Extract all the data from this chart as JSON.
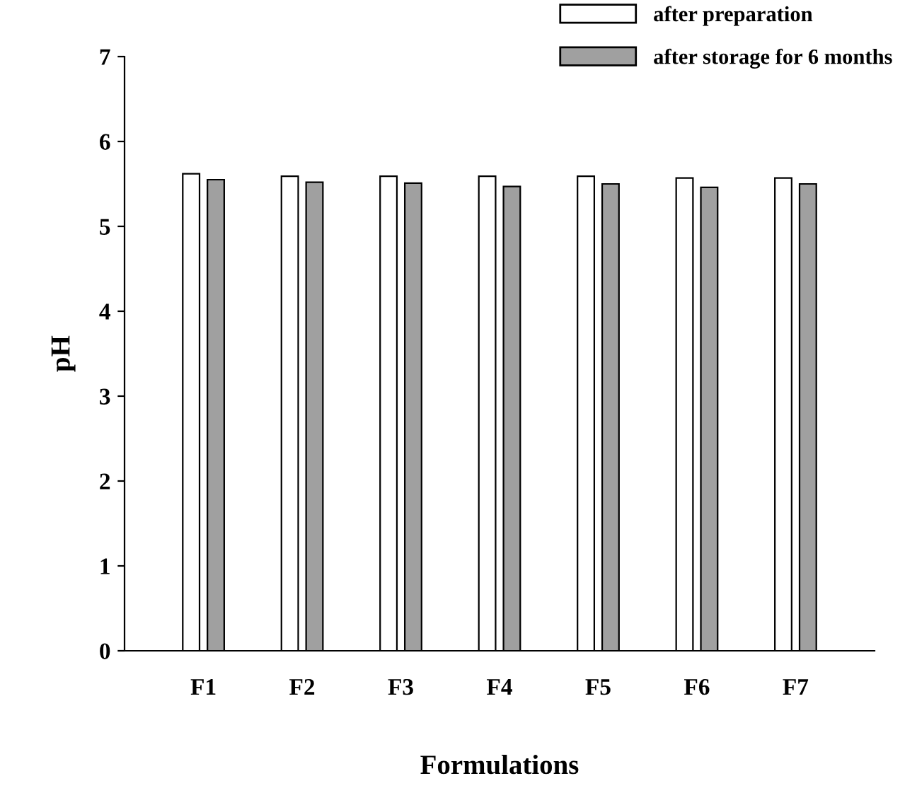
{
  "chart_data": {
    "type": "bar",
    "xlabel": "Formulations",
    "ylabel": "pH",
    "categories": [
      "F1",
      "F2",
      "F3",
      "F4",
      "F5",
      "F6",
      "F7"
    ],
    "series": [
      {
        "name": "after preparation",
        "color": "#ffffff",
        "values": [
          5.62,
          5.59,
          5.59,
          5.59,
          5.59,
          5.57,
          5.57
        ]
      },
      {
        "name": "after storage for 6 months",
        "color": "#a0a0a0",
        "values": [
          5.55,
          5.52,
          5.51,
          5.47,
          5.5,
          5.46,
          5.5
        ]
      }
    ],
    "ylim": [
      0,
      7
    ],
    "yticks": [
      0,
      1,
      2,
      3,
      4,
      5,
      6,
      7
    ],
    "grid": false,
    "legend": "top right"
  }
}
